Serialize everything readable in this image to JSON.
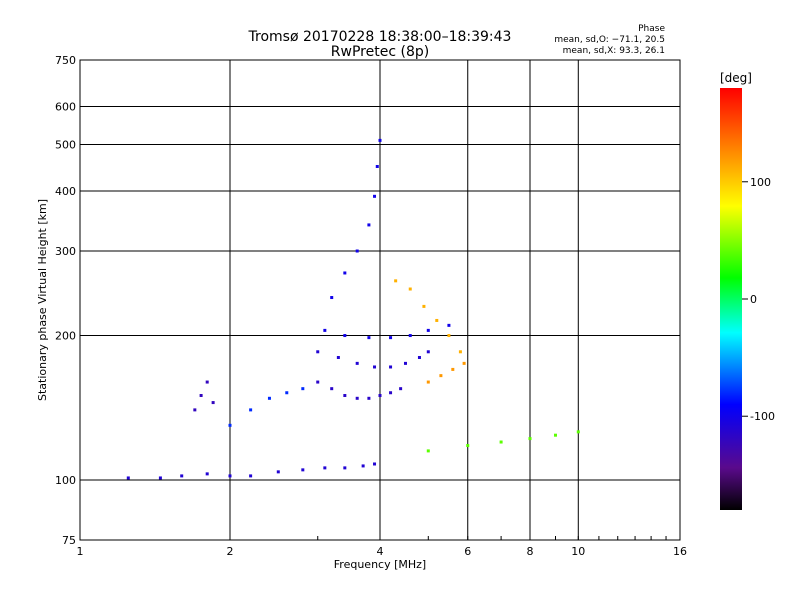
{
  "title": {
    "line1": "Tromsø 20170228 18:38:00–18:39:43",
    "line2": "RwPretec (8p)"
  },
  "phase_stats": {
    "heading": "Phase",
    "o_line": "mean, sd,O: −71.1, 20.5",
    "x_line": "mean, sd,X:  93.3, 26.1"
  },
  "colorbar": {
    "label": "[deg]",
    "range": [
      -180,
      180
    ],
    "ticks": [
      100,
      0,
      -100
    ]
  },
  "chart_data": {
    "type": "scatter",
    "title": "Tromsø 20170228 18:38:00–18:39:43",
    "subtitle": "RwPretec (8p)",
    "xlabel": "Frequency [MHz]",
    "ylabel": "Stationary phase Virtual Height [km]",
    "xscale": "log",
    "yscale": "log",
    "xlim": [
      1,
      16
    ],
    "ylim": [
      75,
      750
    ],
    "xticks": [
      1,
      2,
      4,
      6,
      8,
      10,
      16
    ],
    "yticks": [
      75,
      100,
      200,
      300,
      400,
      500,
      600,
      750
    ],
    "grid": true,
    "color_by": "phase [deg]",
    "traces": [
      {
        "x": [
          1.25,
          1.45,
          1.6,
          1.8,
          2.0,
          2.2,
          2.5,
          2.8,
          3.1,
          3.4,
          3.7,
          3.9
        ],
        "y": [
          101,
          101,
          102,
          103,
          102,
          102,
          104,
          105,
          106,
          106,
          107,
          108
        ],
        "phase": -110
      },
      {
        "x": [
          2.0,
          2.2,
          2.4,
          2.6,
          2.8
        ],
        "y": [
          130,
          140,
          148,
          152,
          155
        ],
        "phase": -80
      },
      {
        "x": [
          1.7,
          1.75,
          1.8,
          1.85
        ],
        "y": [
          140,
          150,
          160,
          145
        ],
        "phase": -120
      },
      {
        "x": [
          3.0,
          3.2,
          3.4,
          3.6,
          3.8,
          4.0,
          4.2,
          4.4
        ],
        "y": [
          160,
          155,
          150,
          148,
          148,
          150,
          152,
          155
        ],
        "phase": -115
      },
      {
        "x": [
          3.0,
          3.3,
          3.6,
          3.9,
          4.2,
          4.5,
          4.8,
          5.0
        ],
        "y": [
          185,
          180,
          175,
          172,
          172,
          175,
          180,
          185
        ],
        "phase": -110
      },
      {
        "x": [
          3.1,
          3.4,
          3.8,
          4.2,
          4.6,
          5.0,
          5.5
        ],
        "y": [
          205,
          200,
          198,
          198,
          200,
          205,
          210
        ],
        "phase": -100
      },
      {
        "x": [
          3.2,
          3.4,
          3.6,
          3.8,
          3.9,
          3.95,
          4.0
        ],
        "y": [
          240,
          270,
          300,
          340,
          390,
          450,
          510
        ],
        "phase": -100
      },
      {
        "x": [
          4.3,
          4.6,
          4.9,
          5.2,
          5.5,
          5.8
        ],
        "y": [
          260,
          250,
          230,
          215,
          200,
          185
        ],
        "phase": 110
      },
      {
        "x": [
          5.0,
          5.3,
          5.6,
          5.9
        ],
        "y": [
          160,
          165,
          170,
          175
        ],
        "phase": 120
      },
      {
        "x": [
          5.0,
          6.0,
          7.0,
          8.0,
          9.0,
          10.0
        ],
        "y": [
          115,
          118,
          120,
          122,
          124,
          126
        ],
        "phase": 40
      }
    ]
  }
}
